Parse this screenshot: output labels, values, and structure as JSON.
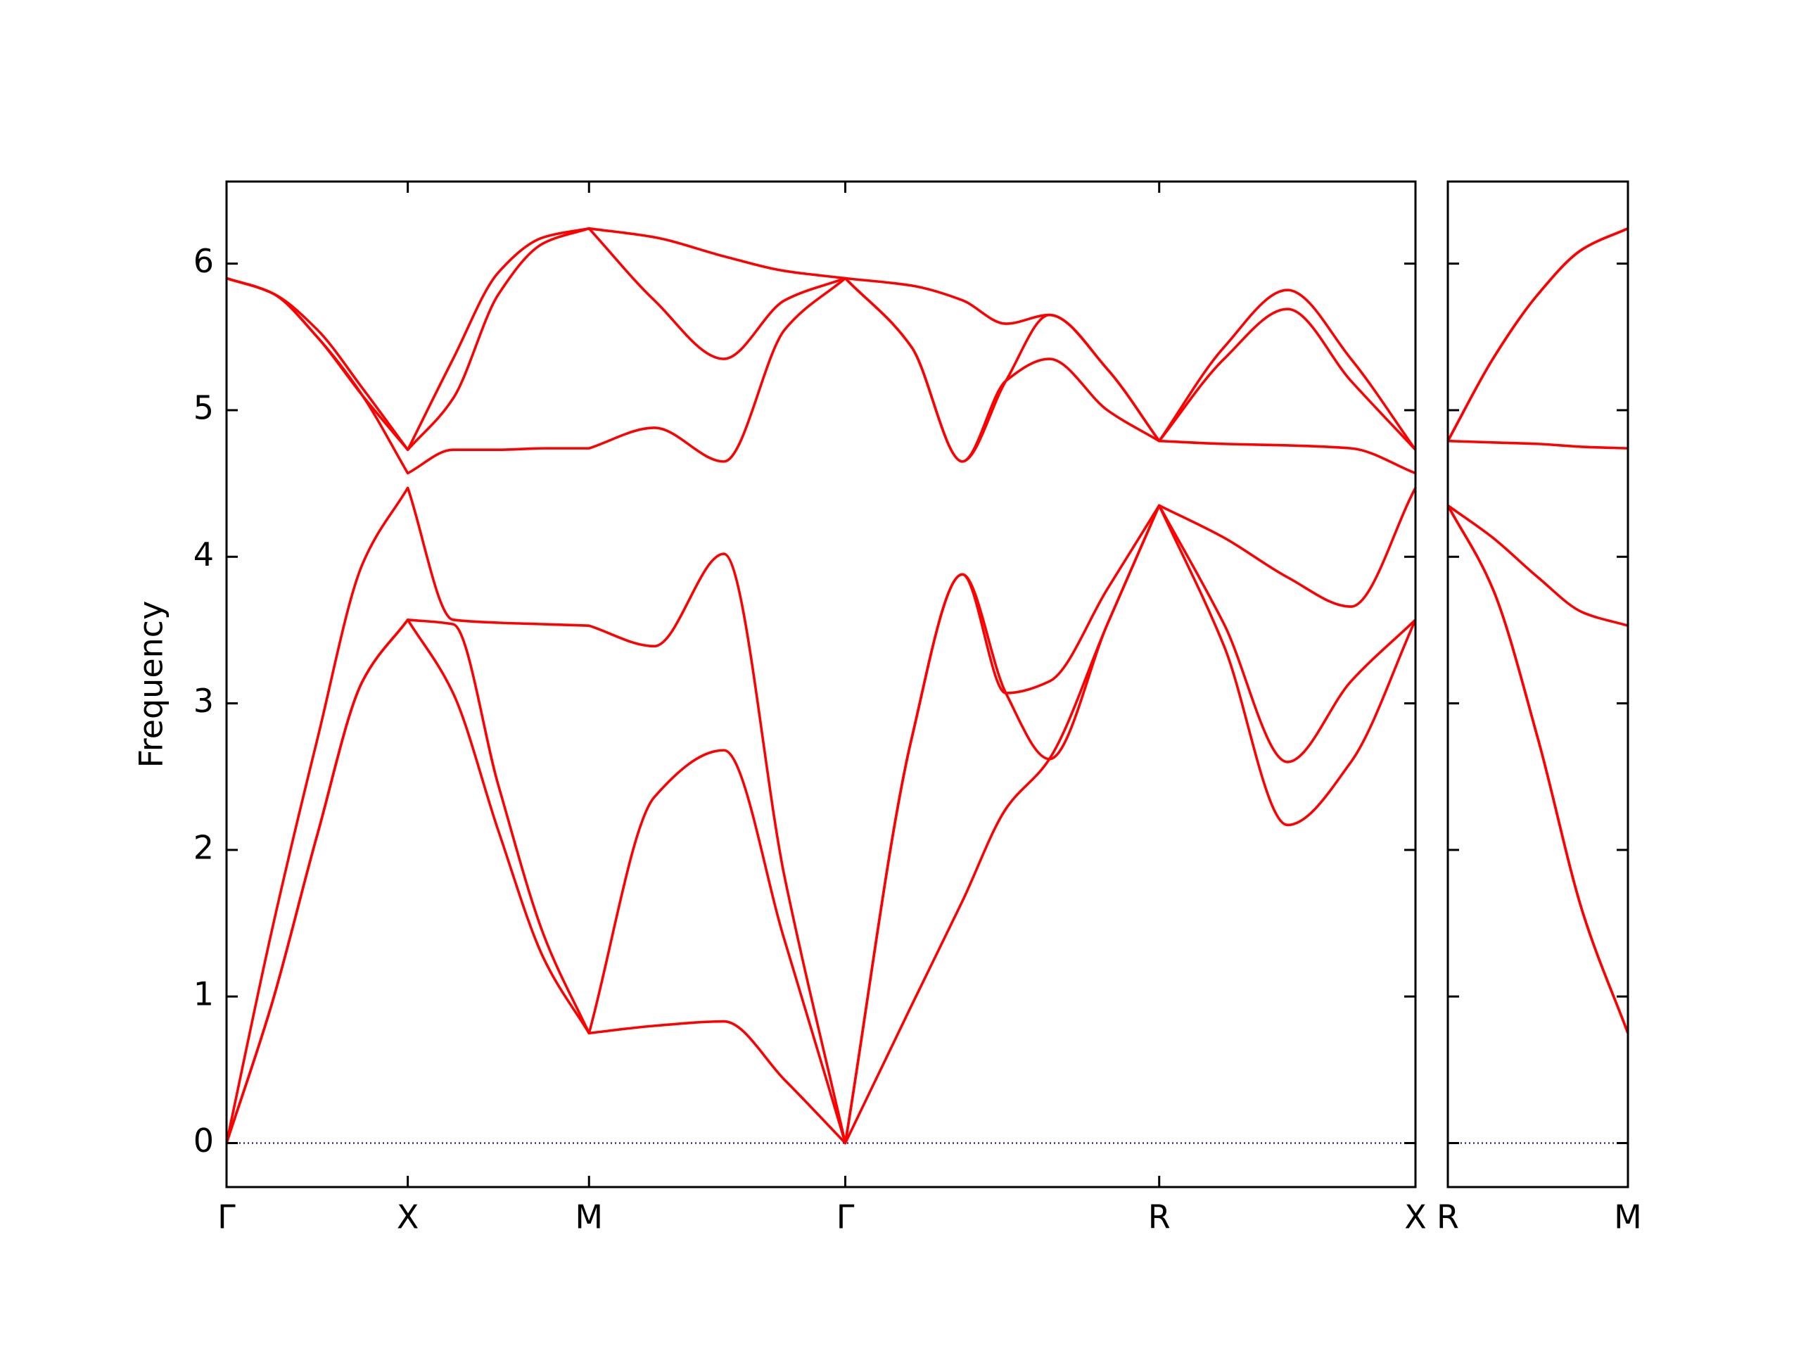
{
  "chart_data": [
    {
      "type": "line",
      "ylabel": "Frequency",
      "x": [
        0,
        0.125,
        0.25,
        0.375,
        0.5,
        0.625,
        0.75,
        0.875,
        1,
        1.18,
        1.372,
        1.54,
        1.707,
        1.89,
        2.03,
        2.15,
        2.27,
        2.43,
        2.573,
        2.752,
        2.927,
        3.102,
        3.28
      ],
      "series": [
        {
          "color": "#ff0000",
          "values": [
            0,
            0.95,
            2.1,
            3.15,
            3.57,
            3.07,
            2.13,
            1.26,
            0.75,
            0.8,
            0.83,
            0.43,
            0,
            0.94,
            1.65,
            2.28,
            2.62,
            3.54,
            4.35,
            3.39,
            2.17,
            2.6,
            3.57
          ]
        },
        {
          "color": "#ff0000",
          "values": [
            0,
            0.95,
            2.1,
            3.15,
            3.57,
            3.54,
            2.44,
            1.42,
            0.75,
            2.36,
            2.68,
            1.38,
            0,
            2.76,
            3.88,
            3.07,
            2.62,
            3.54,
            4.35,
            3.54,
            2.6,
            3.15,
            3.57
          ]
        },
        {
          "color": "#ff0000",
          "values": [
            0,
            1.45,
            2.75,
            3.95,
            4.47,
            3.57,
            3.55,
            3.54,
            3.53,
            3.39,
            4.02,
            1.81,
            0,
            2.76,
            3.88,
            3.07,
            3.15,
            3.78,
            4.35,
            4.13,
            3.86,
            3.66,
            4.47
          ]
        },
        {
          "color": "#ff0000",
          "values": [
            5.9,
            5.8,
            5.5,
            5.1,
            4.57,
            4.73,
            4.73,
            4.74,
            4.74,
            4.88,
            4.65,
            5.55,
            5.9,
            5.43,
            4.65,
            5.2,
            5.35,
            5.0,
            4.79,
            4.77,
            4.76,
            4.74,
            4.57
          ]
        },
        {
          "color": "#ff0000",
          "values": [
            5.9,
            5.8,
            5.5,
            5.1,
            4.73,
            5.08,
            5.79,
            6.14,
            6.24,
            5.75,
            5.35,
            5.75,
            5.9,
            5.43,
            4.65,
            5.2,
            5.65,
            5.28,
            4.79,
            5.35,
            5.69,
            5.2,
            4.73
          ]
        },
        {
          "color": "#ff0000",
          "values": [
            5.9,
            5.8,
            5.55,
            5.15,
            4.73,
            5.35,
            5.94,
            6.18,
            6.24,
            6.18,
            6.05,
            5.95,
            5.9,
            5.85,
            5.75,
            5.59,
            5.65,
            5.28,
            4.79,
            5.43,
            5.82,
            5.35,
            4.73
          ]
        }
      ],
      "xlim": [
        0,
        3.28
      ],
      "xticks": [
        {
          "value": 0,
          "label": "Γ"
        },
        {
          "value": 0.5,
          "label": "X"
        },
        {
          "value": 1,
          "label": "M"
        },
        {
          "value": 1.707,
          "label": "Γ"
        },
        {
          "value": 2.573,
          "label": "R"
        },
        {
          "value": 3.28,
          "label": "X"
        }
      ],
      "ylim": [
        -0.3,
        6.56
      ],
      "yticks": [
        0,
        1,
        2,
        3,
        4,
        5,
        6
      ],
      "show_ytick_labels": true,
      "zero_line": {
        "value": 0,
        "color": "#00008b",
        "style": "dotted"
      }
    },
    {
      "type": "line",
      "x": [
        0,
        0.125,
        0.25,
        0.375,
        0.5
      ],
      "series": [
        {
          "color": "#ff0000",
          "values": [
            4.35,
            3.78,
            2.76,
            1.57,
            0.75
          ]
        },
        {
          "color": "#ff0000",
          "values": [
            4.35,
            3.78,
            2.76,
            1.57,
            0.75
          ]
        },
        {
          "color": "#ff0000",
          "values": [
            4.35,
            4.13,
            3.86,
            3.62,
            3.53
          ]
        },
        {
          "color": "#ff0000",
          "values": [
            4.79,
            4.78,
            4.77,
            4.75,
            4.74
          ]
        },
        {
          "color": "#ff0000",
          "values": [
            4.79,
            5.35,
            5.79,
            6.1,
            6.24
          ]
        },
        {
          "color": "#ff0000",
          "values": [
            4.79,
            5.35,
            5.79,
            6.1,
            6.24
          ]
        }
      ],
      "xlim": [
        0,
        0.5
      ],
      "xticks": [
        {
          "value": 0,
          "label": "R"
        },
        {
          "value": 0.5,
          "label": "M"
        }
      ],
      "ylim": [
        -0.3,
        6.56
      ],
      "yticks": [
        0,
        1,
        2,
        3,
        4,
        5,
        6
      ],
      "show_ytick_labels": false,
      "zero_line": {
        "value": 0,
        "color": "#00008b",
        "style": "dotted"
      }
    }
  ]
}
